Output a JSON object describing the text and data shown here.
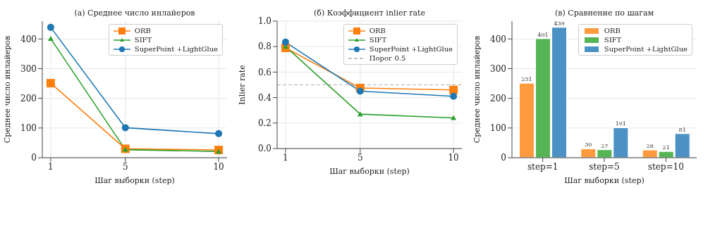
{
  "chart_data": [
    {
      "type": "line",
      "title": "(а) Среднее число инлайеров",
      "xlabel": "Шаг выборки (step)",
      "ylabel": "Среднее число инлайеров",
      "x": [
        1,
        5,
        10
      ],
      "xlim": [
        0.55,
        10.45
      ],
      "xticks": [
        1,
        5,
        10
      ],
      "ylim": [
        0,
        460
      ],
      "yticks": [
        0,
        100,
        200,
        300,
        400
      ],
      "grid": true,
      "legend": "top right",
      "line_style": "solid",
      "series": [
        {
          "name": "ORB",
          "color": "#ff7f0e",
          "marker": "square",
          "values": [
            251,
            30,
            26
          ]
        },
        {
          "name": "SIFT",
          "color": "#2ca02c",
          "marker": "triangle",
          "values": [
            401,
            27,
            21
          ]
        },
        {
          "name": "SuperPoint +LightGlue",
          "color": "#1f77b4",
          "marker": "circle",
          "values": [
            439,
            101,
            81
          ]
        }
      ]
    },
    {
      "type": "line",
      "title": "(б) Коэффициент inlier rate",
      "xlabel": "Шаг выборки (step)",
      "ylabel": "Inlier rate",
      "x": [
        1,
        5,
        10
      ],
      "xlim": [
        0.55,
        10.45
      ],
      "xticks": [
        1,
        5,
        10
      ],
      "ylim": [
        0,
        1
      ],
      "yticks": [
        {
          "value": 0,
          "label": "0.0"
        },
        0.2,
        0.4,
        0.6,
        0.8,
        {
          "value": 1,
          "label": "1.0"
        }
      ],
      "grid": true,
      "legend": "top right",
      "line_style": "solid",
      "series": [
        {
          "name": "ORB",
          "color": "#ff7f0e",
          "marker": "square",
          "values": [
            0.79,
            0.475,
            0.46
          ]
        },
        {
          "name": "SIFT",
          "color": "#2ca02c",
          "marker": "triangle",
          "values": [
            0.8,
            0.27,
            0.24
          ]
        },
        {
          "name": "SuperPoint +LightGlue",
          "color": "#1f77b4",
          "marker": "circle",
          "values": [
            0.835,
            0.45,
            0.41
          ]
        }
      ],
      "ref_lines": [
        {
          "axis": "y",
          "value": 0.5,
          "label": "Порог 0.5",
          "color": "#b0b0b0",
          "line_style": "dashed"
        }
      ]
    },
    {
      "type": "bar",
      "title": "(в) Сравнение по шагам",
      "xlabel": "Шаг выборки (step)",
      "ylabel": "Среднее число инлайеров",
      "categories": [
        "step=1",
        "step=5",
        "step=10"
      ],
      "ylim": [
        0,
        460
      ],
      "yticks": [
        0,
        100,
        200,
        300,
        400
      ],
      "grid": "y",
      "legend": "top right",
      "data_labels": true,
      "series": [
        {
          "name": "ORB",
          "color": "#fe9a3e",
          "values": [
            251,
            30,
            26
          ]
        },
        {
          "name": "SIFT",
          "color": "#55b555",
          "values": [
            401,
            27,
            21
          ]
        },
        {
          "name": "SuperPoint +LightGlue",
          "color": "#4b91c4",
          "values": [
            439,
            101,
            81
          ]
        }
      ]
    }
  ]
}
